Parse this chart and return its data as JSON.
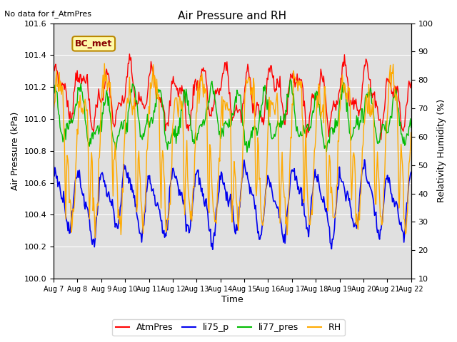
{
  "title": "Air Pressure and RH",
  "top_left_text": "No data for f_AtmPres",
  "box_label": "BC_met",
  "xlabel": "Time",
  "ylabel_left": "Air Pressure (kPa)",
  "ylabel_right": "Relativity Humidity (%)",
  "ylim_left": [
    100.0,
    101.6
  ],
  "ylim_right": [
    10,
    100
  ],
  "bg_color": "#e0e0e0",
  "series_colors": {
    "AtmPres": "#ff0000",
    "li75_p": "#0000ee",
    "li77_pres": "#00bb00",
    "RH": "#ffaa00"
  },
  "legend_labels": [
    "AtmPres",
    "li75_p",
    "li77_pres",
    "RH"
  ],
  "x_tick_labels": [
    "Aug 7",
    "Aug 8",
    "Aug 9",
    "Aug 10",
    "Aug 11",
    "Aug 12",
    "Aug 13",
    "Aug 14",
    "Aug 15",
    "Aug 16",
    "Aug 17",
    "Aug 18",
    "Aug 19",
    "Aug 20",
    "Aug 21",
    "Aug 22"
  ],
  "left_yticks": [
    100.0,
    100.2,
    100.4,
    100.6,
    100.8,
    101.0,
    101.2,
    101.4,
    101.6
  ],
  "right_yticks": [
    10,
    20,
    30,
    40,
    50,
    60,
    70,
    80,
    90,
    100
  ],
  "n_points": 500,
  "date_range_days": 15
}
